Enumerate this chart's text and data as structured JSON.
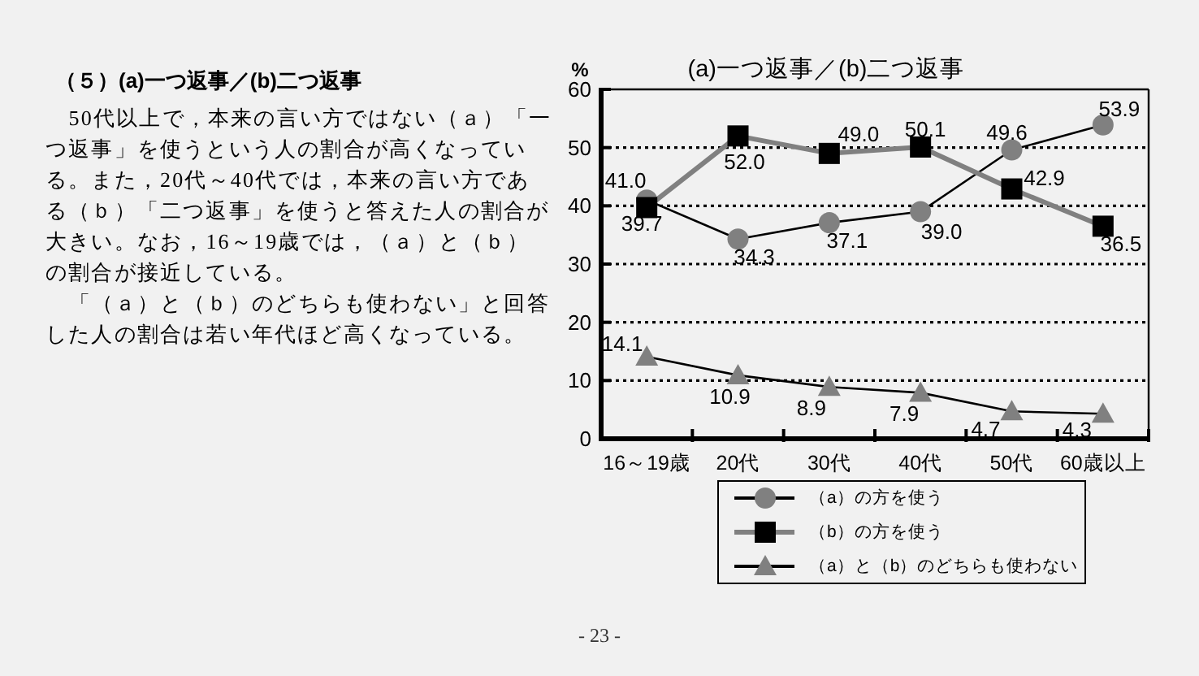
{
  "chart_data": {
    "type": "line",
    "title": "(a)一つ返事／(b)二つ返事",
    "ylabel": "%",
    "categories": [
      "16～19歳",
      "20代",
      "30代",
      "40代",
      "50代",
      "60歳以上"
    ],
    "series": [
      {
        "name": "（a）の方を使う",
        "color": "#000000",
        "colors": [
          "#808080",
          "#808080",
          "#808080",
          "#808080",
          "#808080",
          "#808080"
        ],
        "marker": "circle",
        "values": [
          41.0,
          34.3,
          37.1,
          39.0,
          49.6,
          53.9
        ],
        "value_labels": [
          "41.0",
          "34.3",
          "37.1",
          "39.0",
          "49.6",
          "53.9"
        ]
      },
      {
        "name": "（b）の方を使う",
        "color": "#808080",
        "colors": [
          "#000000",
          "#000000",
          "#000000",
          "#000000",
          "#000000",
          "#000000"
        ],
        "marker": "square",
        "values": [
          39.7,
          52.0,
          49.0,
          50.1,
          42.9,
          36.5
        ],
        "value_labels": [
          "39.7",
          "52.0",
          "49.0",
          "50.1",
          "42.9",
          "36.5"
        ]
      },
      {
        "name": "（a）と（b）のどちらも使わない",
        "color": "#000000",
        "colors": [
          "#808080",
          "#808080",
          "#808080",
          "#808080",
          "#808080",
          "#808080"
        ],
        "marker": "triangle",
        "values": [
          14.1,
          10.9,
          8.9,
          7.9,
          4.7,
          4.3
        ],
        "value_labels": [
          "14.1",
          "10.9",
          "8.9",
          "7.9",
          "4.7",
          "4.3"
        ]
      }
    ],
    "ylim": [
      0,
      60
    ],
    "yticks": [
      0,
      10,
      20,
      30,
      40,
      50,
      60
    ],
    "grid": "y",
    "legend": "bottom",
    "line_style": "solid",
    "annotations": [
      "（５）(a)一つ返事／(b)二つ返事",
      "50代以上で，本来の言い方ではない（ａ）「一つ返事」を使うという人の割合が高くなっている。また，20代～40代では，本来の言い方である（ｂ）「二つ返事」を使うと答えた人の割合が大きい。なお，16～19歳では，（ａ）と（ｂ）の割合が接近している。",
      "「（ａ）と（ｂ）のどちらも使わない」と回答した人の割合は若い年代ほど高くなっている。",
      "- 23 -"
    ]
  }
}
